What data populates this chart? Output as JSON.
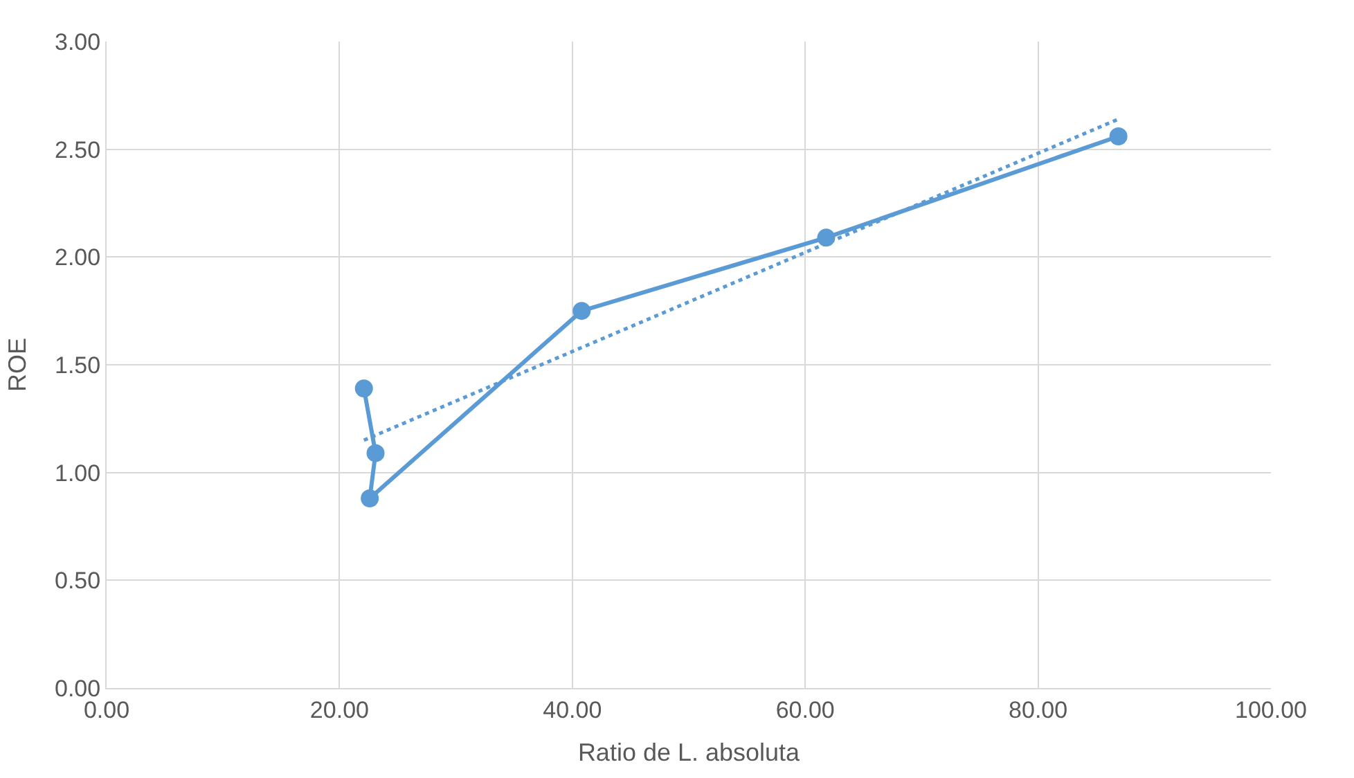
{
  "chart_data": {
    "type": "line",
    "xlabel": "Ratio de L. absoluta",
    "ylabel": "ROE",
    "xlim": [
      0,
      100
    ],
    "xticks": [
      {
        "value": 0,
        "label": "0.00"
      },
      {
        "value": 20,
        "label": "20.00"
      },
      {
        "value": 40,
        "label": "40.00"
      },
      {
        "value": 60,
        "label": "60.00"
      },
      {
        "value": 80,
        "label": "80.00"
      },
      {
        "value": 100,
        "label": "100.00"
      }
    ],
    "ylim": [
      0,
      3
    ],
    "yticks": [
      {
        "value": 0,
        "label": "0.00"
      },
      {
        "value": 0.5,
        "label": "0.50"
      },
      {
        "value": 1,
        "label": "1.00"
      },
      {
        "value": 1.5,
        "label": "1.50"
      },
      {
        "value": 2,
        "label": "2.00"
      },
      {
        "value": 2.5,
        "label": "2.50"
      },
      {
        "value": 3,
        "label": "3.00"
      }
    ],
    "grid": true,
    "series": [
      {
        "color": "#5b9bd5",
        "x": [
          22.1,
          23.1,
          22.6,
          40.8,
          61.8,
          86.9
        ],
        "values": [
          1.39,
          1.09,
          0.88,
          1.75,
          2.09,
          2.56
        ],
        "marker": "circle",
        "line_style": "solid"
      },
      {
        "type": "line",
        "color": "#5b9bd5",
        "x": [
          22.1,
          86.9
        ],
        "values": [
          1.15,
          2.64
        ],
        "marker": "none",
        "line_style": "dotted"
      }
    ]
  }
}
